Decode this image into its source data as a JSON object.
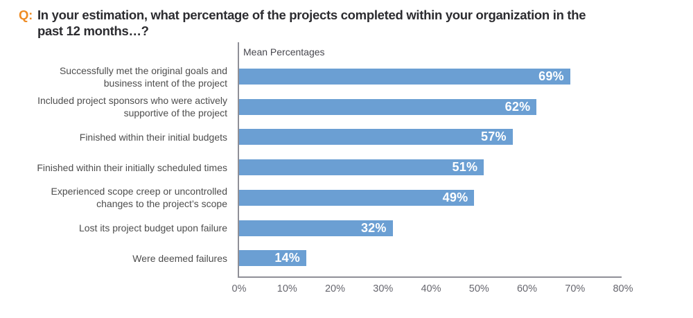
{
  "header": {
    "q_label": "Q:",
    "question": "In your estimation, what percentage of the projects completed within your organization in the past 12 months…?"
  },
  "chart_data": {
    "type": "bar",
    "orientation": "horizontal",
    "axis_title": "Mean Percentages",
    "categories": [
      "Successfully met the original goals and business intent of the project",
      "Included project sponsors who were actively supportive of the project",
      "Finished within their initial budgets",
      "Finished within their initially scheduled times",
      "Experienced scope creep or uncontrolled changes to the project’s scope",
      "Lost its project budget upon failure",
      "Were deemed failures"
    ],
    "values": [
      69,
      62,
      57,
      51,
      49,
      32,
      14
    ],
    "value_labels": [
      "69%",
      "62%",
      "57%",
      "51%",
      "49%",
      "32%",
      "14%"
    ],
    "x_tick_labels": [
      "0%",
      "10%",
      "20%",
      "30%",
      "40%",
      "50%",
      "60%",
      "70%",
      "80%"
    ],
    "xlim": [
      0,
      80
    ],
    "xlabel": "",
    "ylabel": "",
    "grid": false,
    "legend": false,
    "bar_color": "#6b9fd3",
    "value_label_color": "#ffffff",
    "accent_color": "#ee8b23"
  }
}
